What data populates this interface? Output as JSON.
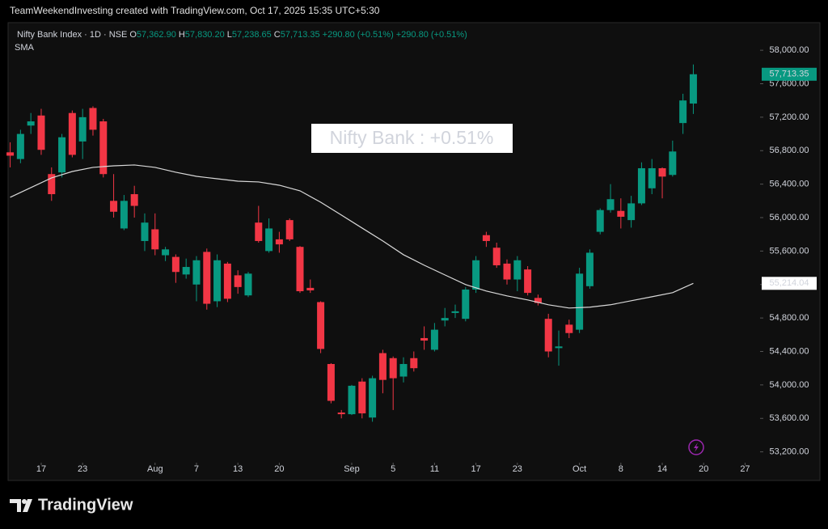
{
  "header": "TeamWeekendInvesting created with TradingView.com, Oct 17, 2025 15:35 UTC+5:30",
  "footer_brand": "TradingView",
  "chart_data": {
    "type": "candlestick",
    "legend_title": "Nifty Bank Index · 1D · NSE",
    "legend_ohlc": [
      {
        "key": "O",
        "value": "57,362.90"
      },
      {
        "key": "H",
        "value": "57,830.20"
      },
      {
        "key": "L",
        "value": "57,238.65"
      },
      {
        "key": "C",
        "value": "57,713.35"
      }
    ],
    "legend_change": [
      "+290.80 (+0.51%)",
      "+290.80 (+0.51%)"
    ],
    "annotation": "Nifty Bank : +0.51%",
    "up_color": "#089981",
    "down_color": "#f23645",
    "series": [
      {
        "name": "Nifty Bank Index",
        "open": [
          56780,
          56700,
          57100,
          57220,
          56520,
          56540,
          57250,
          56910,
          57310,
          57150,
          56200,
          55870,
          56280,
          55720,
          55860,
          55550,
          55530,
          55320,
          55200,
          55590,
          55000,
          55450,
          55310,
          55070,
          55940,
          55600,
          55740,
          55970,
          55650,
          55160,
          54990,
          54250,
          53670,
          53650,
          54040,
          53610,
          54380,
          54320,
          54100,
          54320,
          54560,
          54420,
          54770,
          54860,
          54790,
          55140,
          55790,
          55640,
          55450,
          55260,
          55380,
          55040,
          54790,
          54440,
          54720,
          54660,
          55180,
          55830,
          56090,
          56080,
          55970,
          56170,
          56350,
          56590,
          56510,
          57130,
          57362.9
        ],
        "high": [
          56900,
          57050,
          57250,
          57300,
          56600,
          57000,
          57280,
          57300,
          57330,
          57180,
          56520,
          56270,
          56380,
          56050,
          56050,
          55650,
          55560,
          55510,
          55540,
          55630,
          55560,
          55470,
          55370,
          55350,
          56140,
          55990,
          55830,
          55990,
          55660,
          55260,
          55000,
          54260,
          53700,
          54000,
          54080,
          54110,
          54420,
          54340,
          54330,
          54400,
          54700,
          54740,
          54920,
          54960,
          55170,
          55540,
          55830,
          55700,
          55500,
          55540,
          55420,
          55080,
          54850,
          54650,
          54780,
          55400,
          55620,
          56110,
          56400,
          56230,
          56260,
          56660,
          56700,
          56600,
          56920,
          57480,
          57830.2
        ],
        "low": [
          56600,
          56650,
          57000,
          56750,
          56200,
          56480,
          56720,
          56700,
          56980,
          56480,
          56000,
          55850,
          56000,
          55600,
          55550,
          55480,
          55220,
          55270,
          55000,
          54900,
          54930,
          54990,
          55090,
          55050,
          55700,
          55580,
          55580,
          55720,
          55100,
          55100,
          54380,
          53780,
          53600,
          53640,
          53600,
          53560,
          53900,
          53700,
          54030,
          54160,
          54420,
          54400,
          54700,
          54800,
          54760,
          55100,
          55650,
          55400,
          55200,
          55120,
          55070,
          54950,
          54330,
          54230,
          54560,
          54620,
          55150,
          55800,
          56060,
          55870,
          55880,
          56150,
          56280,
          56230,
          56490,
          57000,
          57238.65
        ],
        "close": [
          56740,
          57000,
          57150,
          56810,
          56280,
          56960,
          56750,
          57200,
          57050,
          56520,
          56070,
          56200,
          56140,
          55940,
          55620,
          55620,
          55350,
          55410,
          55490,
          54970,
          55490,
          55030,
          55170,
          55330,
          55720,
          55870,
          55680,
          55740,
          55120,
          55130,
          54430,
          53810,
          53650,
          53990,
          53660,
          54080,
          54060,
          54080,
          54250,
          54200,
          54530,
          54660,
          54800,
          54880,
          55140,
          55490,
          55720,
          55430,
          55260,
          55490,
          55100,
          54980,
          54400,
          54460,
          54620,
          55330,
          55580,
          56090,
          56220,
          56010,
          56170,
          56590,
          56590,
          56490,
          56790,
          57400,
          57713.35
        ],
        "last_label": "57,713.35"
      }
    ],
    "sma": {
      "name": "SMA",
      "color": "#d9d9d9",
      "x": [
        0,
        2,
        4,
        6,
        8,
        10,
        12,
        14,
        16,
        18,
        20,
        22,
        24,
        26,
        28,
        30,
        32,
        34,
        36,
        38,
        40,
        42,
        44,
        46,
        48,
        50,
        52,
        54,
        56,
        58,
        60,
        62,
        64,
        66
      ],
      "values": [
        56242,
        56358,
        56474,
        56551,
        56600,
        56619,
        56629,
        56600,
        56542,
        56493,
        56464,
        56435,
        56426,
        56387,
        56320,
        56184,
        56030,
        55875,
        55721,
        55556,
        55431,
        55315,
        55199,
        55122,
        55064,
        55016,
        54958,
        54919,
        54929,
        54958,
        55006,
        55054,
        55103,
        55214.04
      ],
      "last_label": "55,214.04"
    },
    "xlim": [
      -0.2,
      72.45
    ],
    "xticks": [
      {
        "value": 3,
        "label": "17"
      },
      {
        "value": 7,
        "label": "23"
      },
      {
        "value": 14,
        "label": "Aug"
      },
      {
        "value": 18,
        "label": "7"
      },
      {
        "value": 22,
        "label": "13"
      },
      {
        "value": 26,
        "label": "20"
      },
      {
        "value": 33,
        "label": "Sep"
      },
      {
        "value": 37,
        "label": "5"
      },
      {
        "value": 41,
        "label": "11"
      },
      {
        "value": 45,
        "label": "17"
      },
      {
        "value": 49,
        "label": "23"
      },
      {
        "value": 55,
        "label": "Oct"
      },
      {
        "value": 59,
        "label": "8"
      },
      {
        "value": 63,
        "label": "14"
      },
      {
        "value": 67,
        "label": "20"
      },
      {
        "value": 71,
        "label": "27"
      }
    ],
    "ylim": [
      53090,
      58330
    ],
    "yticks": [
      {
        "value": 53200,
        "label": "53,200.00"
      },
      {
        "value": 53600,
        "label": "53,600.00"
      },
      {
        "value": 54000,
        "label": "54,000.00"
      },
      {
        "value": 54400,
        "label": "54,400.00"
      },
      {
        "value": 54800,
        "label": "54,800.00"
      },
      {
        "value": 55200,
        "label": "55,200.00"
      },
      {
        "value": 55600,
        "label": "55,600.00"
      },
      {
        "value": 56000,
        "label": "56,000.00"
      },
      {
        "value": 56400,
        "label": "56,400.00"
      },
      {
        "value": 56800,
        "label": "56,800.00"
      },
      {
        "value": 57200,
        "label": "57,200.00"
      },
      {
        "value": 57600,
        "label": "57,600.00"
      },
      {
        "value": 58000,
        "label": "58,000.00"
      }
    ]
  }
}
